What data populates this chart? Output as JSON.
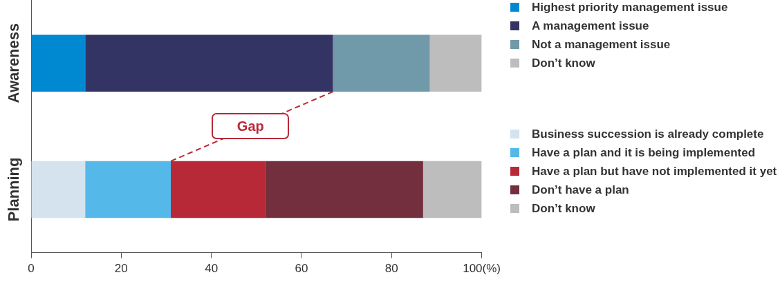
{
  "chart_data": {
    "type": "bar",
    "orientation": "horizontal",
    "stacked": true,
    "categories": [
      "Awareness",
      "Planning"
    ],
    "series": [
      {
        "name": "Highest priority management issue",
        "color": "#0088d1",
        "values": [
          12,
          null
        ]
      },
      {
        "name": "A management issue",
        "color": "#343464",
        "values": [
          55,
          null
        ]
      },
      {
        "name": "Not a management issue",
        "color": "#7099aa",
        "values": [
          21.5,
          null
        ]
      },
      {
        "name": "Don’t know",
        "color": "#bdbdbd",
        "values": [
          11.5,
          null
        ]
      },
      {
        "name": "Business succession is already complete",
        "color": "#d4e3ee",
        "values": [
          null,
          12
        ]
      },
      {
        "name": "Have a plan and it is being implemented",
        "color": "#54b8e8",
        "values": [
          null,
          19
        ]
      },
      {
        "name": "Have a plan but have not implemented it yet",
        "color": "#b82937",
        "values": [
          null,
          21
        ]
      },
      {
        "name": "Don’t have a plan",
        "color": "#742f3e",
        "values": [
          null,
          35
        ]
      },
      {
        "name": "Don’t know",
        "color": "#bdbdbd",
        "values": [
          null,
          13
        ]
      }
    ],
    "xlim": [
      0,
      100
    ],
    "xticks": [
      0,
      20,
      40,
      60,
      80,
      {
        "value": 100,
        "label": "100(%)"
      }
    ],
    "grid": false,
    "legend": "right",
    "annotations": [
      "Gap"
    ]
  }
}
